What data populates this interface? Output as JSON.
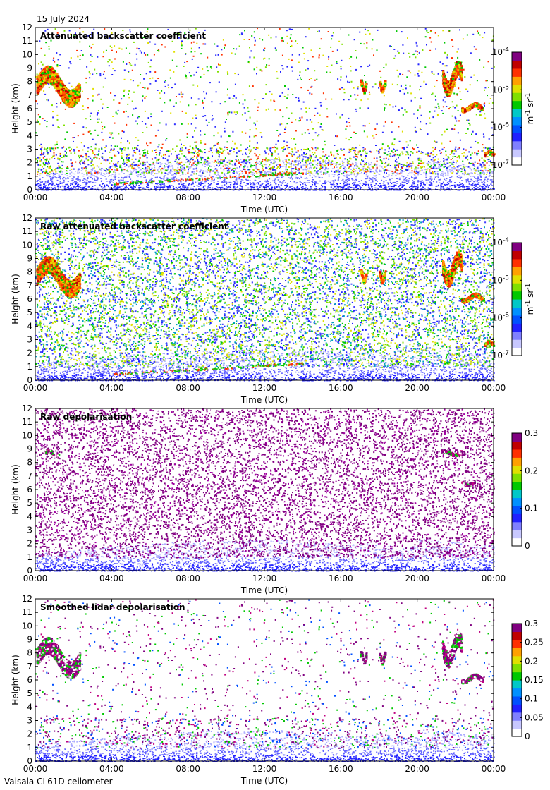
{
  "date_label": "15 July 2024",
  "footer": "Vaisala CL61D ceilometer",
  "chart_data": [
    {
      "type": "heatmap",
      "title": "Attenuated backscatter coefficient",
      "xlabel": "Time (UTC)",
      "ylabel": "Height (km)",
      "x_ticks": [
        "00:00",
        "04:00",
        "08:00",
        "12:00",
        "16:00",
        "20:00",
        "00:00"
      ],
      "y_ticks": [
        "0",
        "1",
        "2",
        "3",
        "4",
        "5",
        "6",
        "7",
        "8",
        "9",
        "10",
        "11",
        "12"
      ],
      "ylim": [
        0,
        12
      ],
      "colorbar": {
        "scale": "log",
        "range": [
          1e-07,
          0.0001
        ],
        "tick_base": "10",
        "ticks": [
          "-7",
          "-6",
          "-5",
          "-4"
        ],
        "unit_parts": [
          "m",
          "-1",
          " sr",
          "-1"
        ]
      },
      "noise": "low",
      "clouds": [
        {
          "t": [
            0.05,
            2.3
          ],
          "h": [
            6.2,
            9.2
          ]
        },
        {
          "t": [
            17.0,
            17.3
          ],
          "h": [
            7.2,
            8.2
          ]
        },
        {
          "t": [
            18.0,
            18.3
          ],
          "h": [
            7.2,
            8.2
          ]
        },
        {
          "t": [
            21.3,
            22.3
          ],
          "h": [
            7.0,
            9.6
          ]
        },
        {
          "t": [
            22.3,
            23.4
          ],
          "h": [
            5.8,
            6.5
          ]
        },
        {
          "t": [
            23.5,
            24.0
          ],
          "h": [
            2.6,
            3.0
          ]
        }
      ]
    },
    {
      "type": "heatmap",
      "title": "Raw attenuated backscatter coefficient",
      "xlabel": "Time (UTC)",
      "ylabel": "Height (km)",
      "x_ticks": [
        "00:00",
        "04:00",
        "08:00",
        "12:00",
        "16:00",
        "20:00",
        "00:00"
      ],
      "y_ticks": [
        "0",
        "1",
        "2",
        "3",
        "4",
        "5",
        "6",
        "7",
        "8",
        "9",
        "10",
        "11",
        "12"
      ],
      "ylim": [
        0,
        12
      ],
      "colorbar": {
        "scale": "log",
        "range": [
          1e-07,
          0.0001
        ],
        "tick_base": "10",
        "ticks": [
          "-7",
          "-6",
          "-5",
          "-4"
        ],
        "unit_parts": [
          "m",
          "-1",
          " sr",
          "-1"
        ]
      },
      "noise": "high",
      "clouds": [
        {
          "t": [
            0.05,
            2.3
          ],
          "h": [
            6.2,
            9.2
          ]
        },
        {
          "t": [
            17.0,
            17.3
          ],
          "h": [
            7.2,
            8.2
          ]
        },
        {
          "t": [
            18.0,
            18.3
          ],
          "h": [
            7.2,
            8.2
          ]
        },
        {
          "t": [
            21.3,
            22.3
          ],
          "h": [
            7.0,
            9.6
          ]
        },
        {
          "t": [
            22.3,
            23.4
          ],
          "h": [
            5.8,
            6.5
          ]
        },
        {
          "t": [
            23.5,
            24.0
          ],
          "h": [
            2.6,
            3.0
          ]
        }
      ]
    },
    {
      "type": "heatmap",
      "title": "Raw depolarisation",
      "xlabel": "Time (UTC)",
      "ylabel": "Height (km)",
      "x_ticks": [
        "00:00",
        "04:00",
        "08:00",
        "12:00",
        "16:00",
        "20:00",
        "00:00"
      ],
      "y_ticks": [
        "0",
        "1",
        "2",
        "3",
        "4",
        "5",
        "6",
        "7",
        "8",
        "9",
        "10",
        "11",
        "12"
      ],
      "ylim": [
        0,
        12
      ],
      "colorbar": {
        "scale": "linear",
        "range": [
          0,
          0.3
        ],
        "ticks": [
          "0",
          "0.1",
          "0.2",
          "0.3"
        ]
      },
      "noise": "saturated",
      "clouds": [
        {
          "t": [
            0.5,
            1.2
          ],
          "h": [
            8.5,
            9.0
          ]
        },
        {
          "t": [
            21.3,
            22.3
          ],
          "h": [
            8.5,
            9.0
          ]
        },
        {
          "t": [
            22.3,
            23.0
          ],
          "h": [
            6.3,
            6.7
          ]
        }
      ]
    },
    {
      "type": "heatmap",
      "title": "Smoothed lidar depolarisation",
      "xlabel": "Time (UTC)",
      "ylabel": "Height (km)",
      "x_ticks": [
        "00:00",
        "04:00",
        "08:00",
        "12:00",
        "16:00",
        "20:00",
        "00:00"
      ],
      "y_ticks": [
        "0",
        "1",
        "2",
        "3",
        "4",
        "5",
        "6",
        "7",
        "8",
        "9",
        "10",
        "11",
        "12"
      ],
      "ylim": [
        0,
        12
      ],
      "colorbar": {
        "scale": "linear",
        "range": [
          0,
          0.3
        ],
        "ticks": [
          "0",
          "0.05",
          "0.1",
          "0.15",
          "0.2",
          "0.25",
          "0.3"
        ]
      },
      "noise": "sparse",
      "clouds": [
        {
          "t": [
            0.05,
            2.3
          ],
          "h": [
            6.2,
            9.2
          ]
        },
        {
          "t": [
            17.0,
            17.3
          ],
          "h": [
            7.2,
            8.2
          ]
        },
        {
          "t": [
            18.0,
            18.3
          ],
          "h": [
            7.2,
            8.2
          ]
        },
        {
          "t": [
            21.3,
            22.3
          ],
          "h": [
            7.0,
            9.6
          ]
        },
        {
          "t": [
            22.3,
            23.4
          ],
          "h": [
            5.8,
            6.5
          ]
        }
      ]
    }
  ]
}
